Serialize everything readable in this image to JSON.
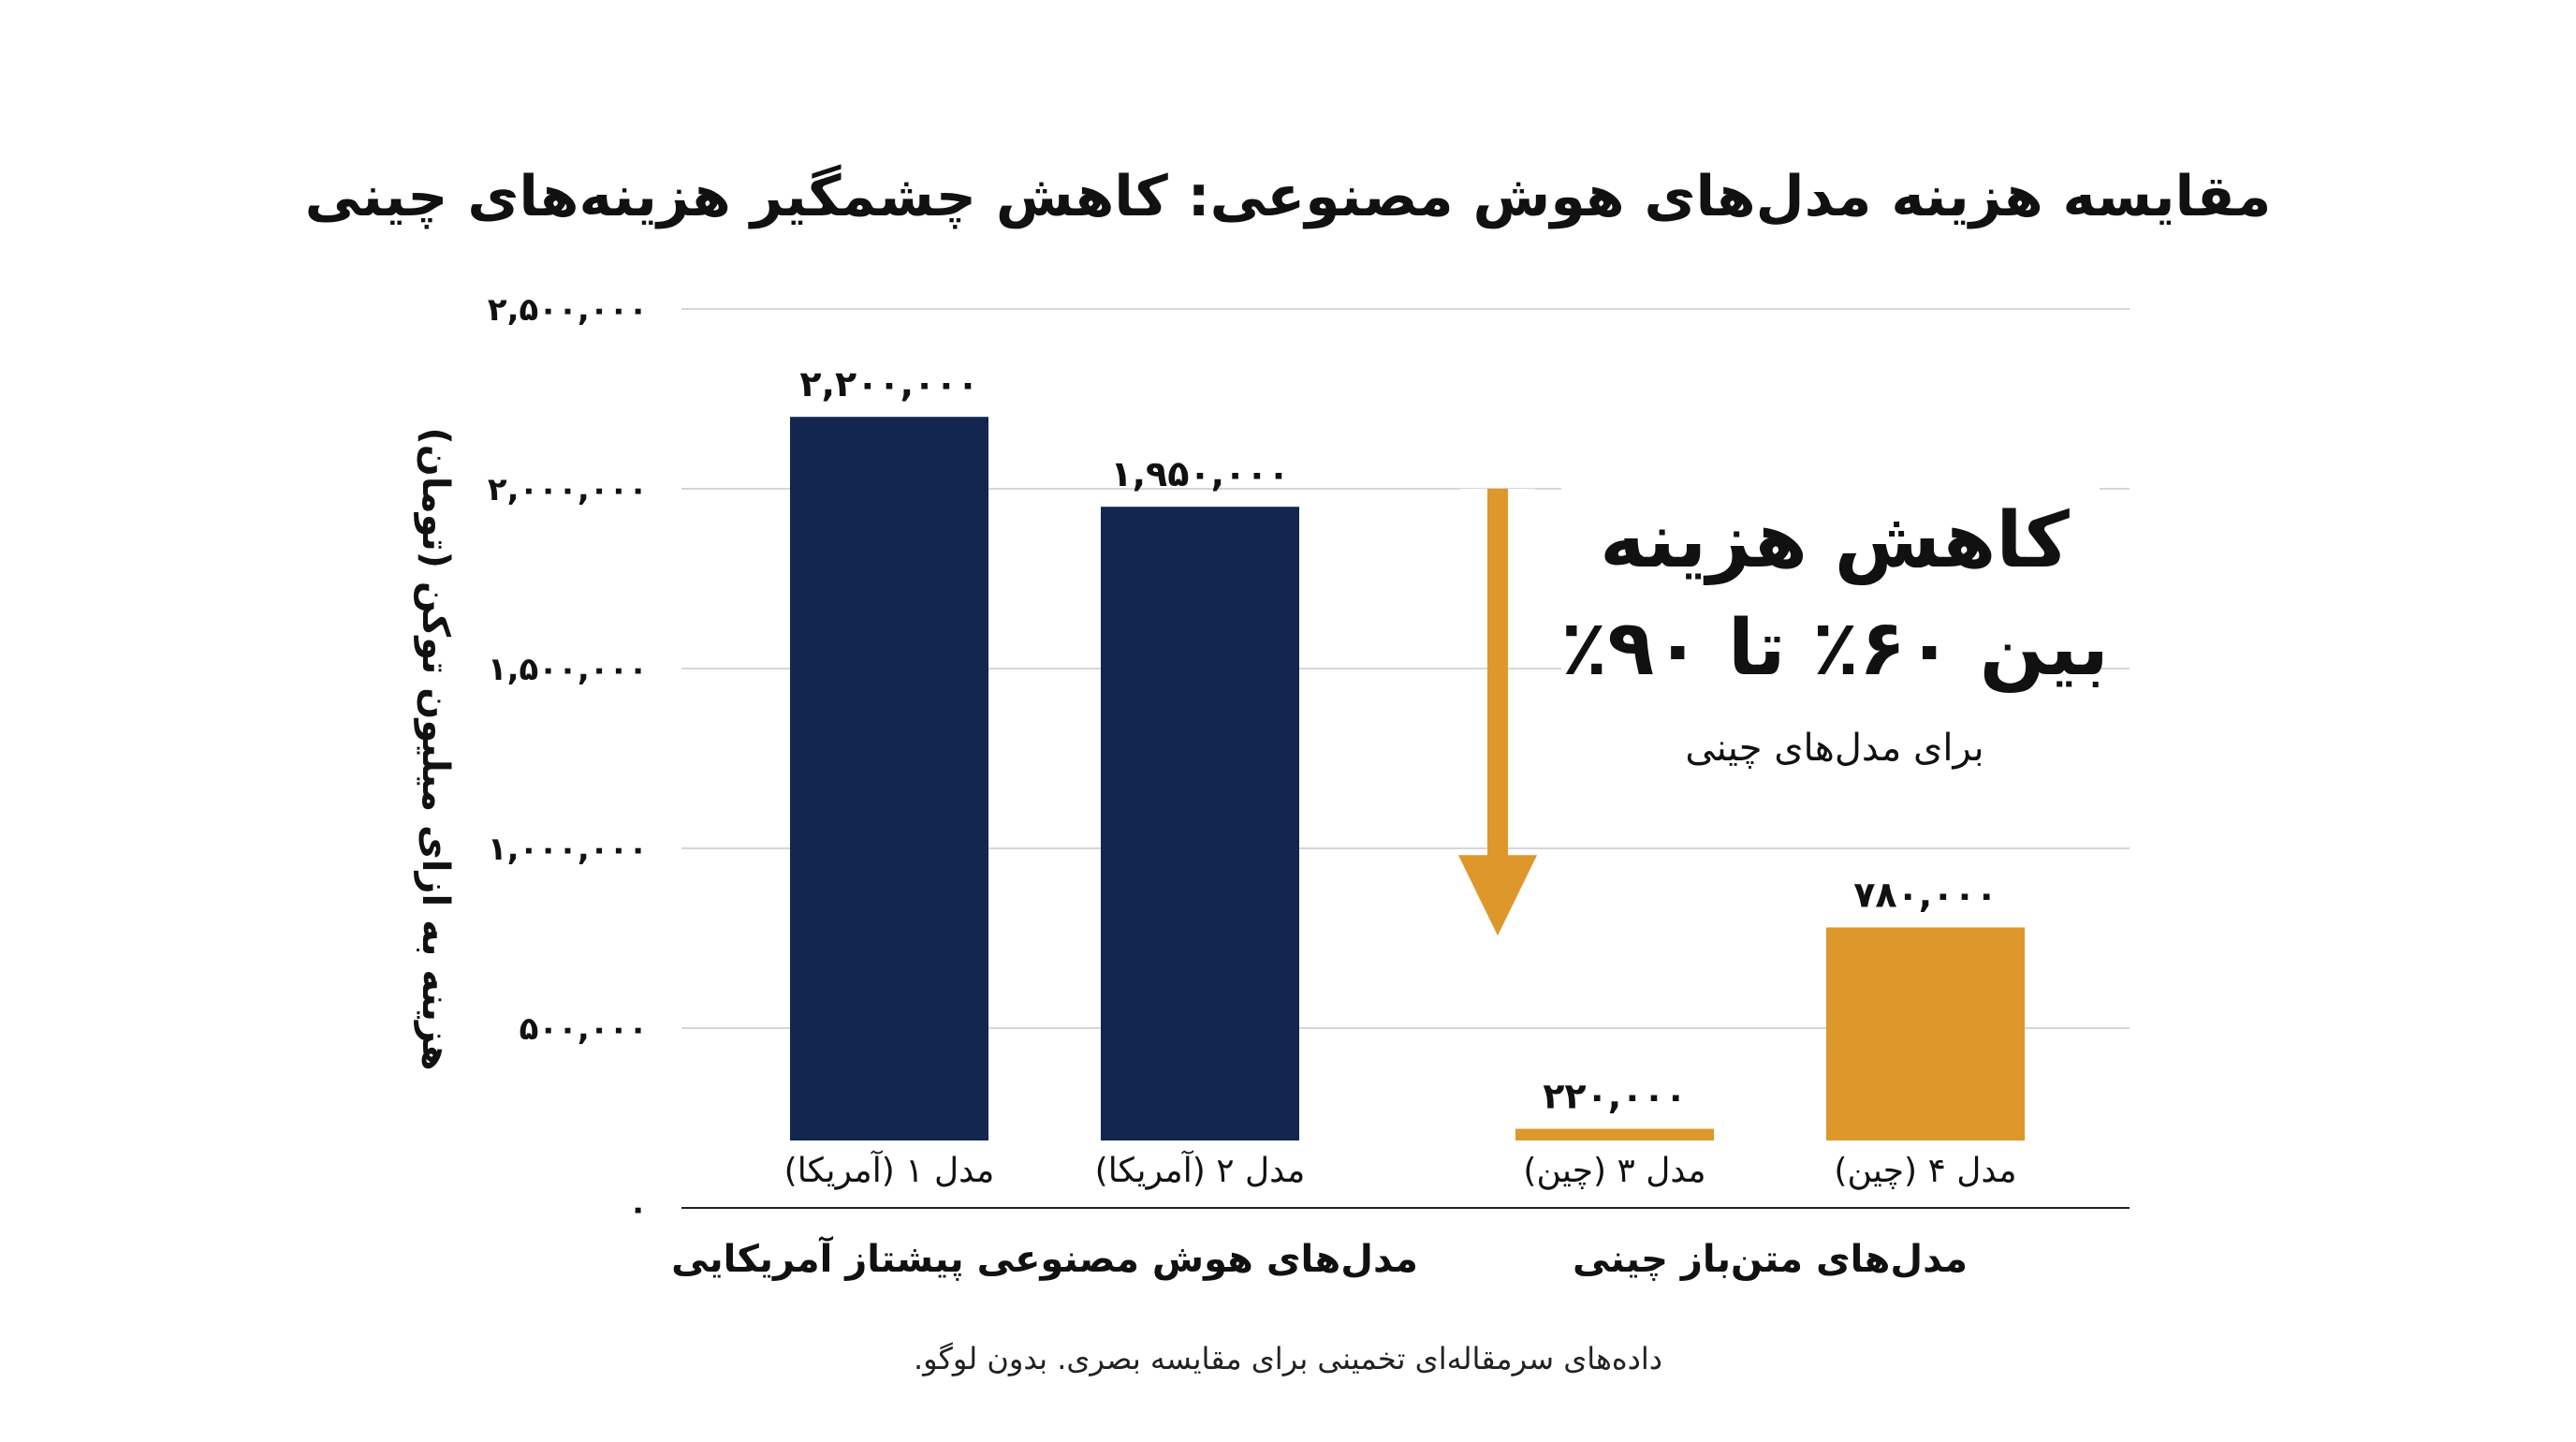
{
  "chart_data": {
    "type": "bar",
    "title": "مقایسه هزینه مدل‌های هوش مصنوعی: کاهش چشمگیر هزینه‌های چینی",
    "ylabel": "هزینه به ازای میلیون توکن (تومان)",
    "ylim": [
      0,
      2500000
    ],
    "yticks": [
      0,
      500000,
      1000000,
      1500000,
      2000000,
      2500000
    ],
    "ytick_labels": [
      "۰",
      "۵۰۰,۰۰۰",
      "۱,۰۰۰,۰۰۰",
      "۱,۵۰۰,۰۰۰",
      "۲,۰۰۰,۰۰۰",
      "۲,۵۰۰,۰۰۰"
    ],
    "grid": true,
    "categories": [
      "مدل ۱ (آمریکا)",
      "مدل ۲ (آمریکا)",
      "مدل ۳ (چین)",
      "مدل ۴ (چین)"
    ],
    "values": [
      2200000,
      1950000,
      220000,
      780000
    ],
    "value_labels": [
      "۲,۲۰۰,۰۰۰",
      "۱,۹۵۰,۰۰۰",
      "۲۲۰,۰۰۰",
      "۷۸۰,۰۰۰"
    ],
    "groups": [
      {
        "label": "مدل‌های هوش مصنوعی پیشتاز آمریکایی",
        "categories": [
          0,
          1
        ]
      },
      {
        "label": "مدل‌های متن‌باز چینی",
        "categories": [
          2,
          3
        ]
      }
    ],
    "annotation": {
      "line1": "کاهش هزینه",
      "line2": "بین ۶۰٪ تا ۹۰٪",
      "line3": "برای مدل‌های چینی",
      "arrow_from": 2000000,
      "arrow_to": 700000
    },
    "footnote": "داده‌های سرمقاله‌ای تخمینی برای مقایسه بصری. بدون لوگو."
  },
  "colors": {
    "us_bars": "#13264f",
    "china_bars": "#de972a",
    "arrow": "#de972a",
    "grid": "#d6d6d6",
    "axis": "#222222"
  }
}
